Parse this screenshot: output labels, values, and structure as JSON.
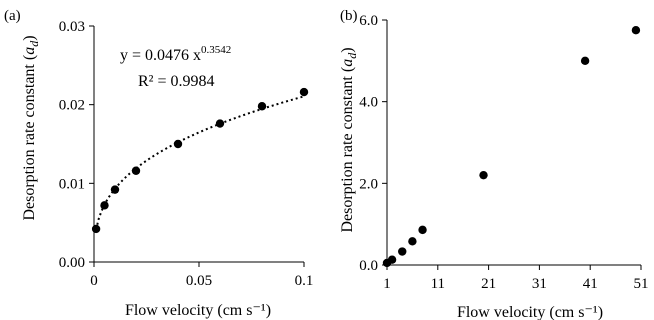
{
  "chart_data": [
    {
      "type": "scatter",
      "panel_label": "(a)",
      "xlabel": "Flow velocity (cm s⁻¹)",
      "ylabel_prefix": "Desorption rate constant (",
      "ylabel_symbol": "a",
      "ylabel_subscript": "d",
      "ylabel_suffix": ")",
      "xlim": [
        0,
        0.1
      ],
      "ylim": [
        0,
        0.03
      ],
      "xticks": [
        0,
        0.05,
        0.1
      ],
      "xtick_labels": [
        "0",
        "0.05",
        "0.1"
      ],
      "yticks": [
        0,
        0.01,
        0.02,
        0.03
      ],
      "ytick_labels": [
        "0.00",
        "0.01",
        "0.02",
        "0.03"
      ],
      "grid": false,
      "series": [
        {
          "x": [
            0.001,
            0.005,
            0.01,
            0.02,
            0.04,
            0.06,
            0.08,
            0.1
          ],
          "y": [
            0.0042,
            0.0072,
            0.0092,
            0.0116,
            0.015,
            0.0176,
            0.0198,
            0.0216
          ]
        }
      ],
      "trendline": {
        "style": "dotted",
        "a": 0.0476,
        "b": 0.3542,
        "equation_text": "y = 0.0476 x",
        "equation_exponent": "0.3542",
        "r2_text": "R² = 0.9984"
      }
    },
    {
      "type": "scatter",
      "panel_label": "(b)",
      "xlabel": "Flow velocity (cm s⁻¹)",
      "ylabel_prefix": "Desorption rate constant (",
      "ylabel_symbol": "a",
      "ylabel_subscript": "d",
      "ylabel_suffix": ")",
      "xlim": [
        1,
        51
      ],
      "ylim": [
        0,
        6
      ],
      "xticks": [
        1,
        11,
        21,
        31,
        41,
        51
      ],
      "xtick_labels": [
        "1",
        "11",
        "21",
        "31",
        "41",
        "51"
      ],
      "yticks": [
        0,
        2,
        4,
        6
      ],
      "ytick_labels": [
        "0.0",
        "2.0",
        "4.0",
        "6.0"
      ],
      "grid": false,
      "series": [
        {
          "x": [
            1,
            2,
            4,
            6,
            8,
            20,
            40,
            50
          ],
          "y": [
            0.05,
            0.13,
            0.33,
            0.58,
            0.86,
            2.2,
            5.0,
            5.75
          ]
        }
      ]
    }
  ]
}
